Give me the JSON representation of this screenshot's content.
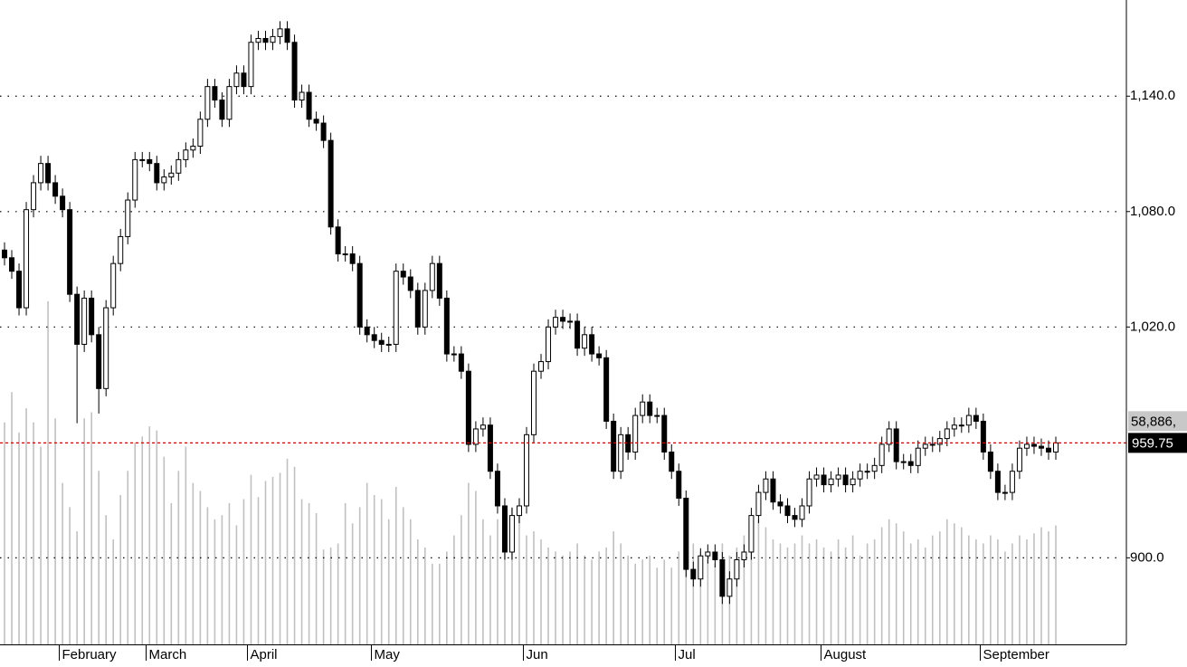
{
  "chart_data": {
    "type": "candlestick",
    "categories": [
      null,
      null,
      null,
      null,
      null,
      null,
      null,
      null,
      "February",
      null,
      null,
      null,
      null,
      null,
      null,
      null,
      null,
      null,
      null,
      null,
      "March",
      null,
      null,
      null,
      null,
      null,
      null,
      null,
      null,
      null,
      null,
      null,
      null,
      null,
      "April",
      null,
      null,
      null,
      null,
      null,
      null,
      null,
      null,
      null,
      null,
      null,
      null,
      null,
      null,
      null,
      null,
      "May",
      null,
      null,
      null,
      null,
      null,
      null,
      null,
      null,
      null,
      null,
      null,
      null,
      null,
      null,
      null,
      null,
      null,
      null,
      null,
      null,
      "Jun",
      null,
      null,
      null,
      null,
      null,
      null,
      null,
      null,
      null,
      null,
      null,
      null,
      null,
      null,
      null,
      null,
      null,
      null,
      null,
      null,
      "Jul",
      null,
      null,
      null,
      null,
      null,
      null,
      null,
      null,
      null,
      null,
      null,
      null,
      null,
      null,
      null,
      null,
      null,
      null,
      null,
      "August",
      null,
      null,
      null,
      null,
      null,
      null,
      null,
      null,
      null,
      null,
      null,
      null,
      null,
      null,
      null,
      null,
      null,
      null,
      null,
      null,
      null,
      "September",
      null,
      null,
      null,
      null,
      null,
      null,
      null,
      null,
      null,
      null
    ],
    "open": [
      1060,
      1056,
      1049,
      1030,
      1081,
      1095,
      1105,
      1095,
      1088,
      1081,
      1037,
      1011,
      1035,
      1016,
      988,
      1030,
      1053,
      1067,
      1086,
      1107,
      1107,
      1105,
      1095,
      1098,
      1100,
      1107,
      1112,
      1114,
      1128,
      1145,
      1138,
      1128,
      1145,
      1152,
      1145,
      1168,
      1170,
      1168,
      1171,
      1175,
      1168,
      1138,
      1142,
      1128,
      1126,
      1117,
      1072,
      1058,
      1058,
      1053,
      1020,
      1016,
      1013,
      1011,
      1011,
      1049,
      1046,
      1039,
      1020,
      1039,
      1053,
      1035,
      1006,
      1006,
      997,
      959,
      967,
      969,
      945,
      927,
      903,
      922,
      927,
      964,
      997,
      1002,
      1020,
      1025,
      1023,
      1023,
      1009,
      1016,
      1006,
      1004,
      971,
      945,
      964,
      955,
      974,
      981,
      974,
      974,
      955,
      945,
      931,
      894,
      889,
      901,
      903,
      899,
      880,
      889,
      899,
      903,
      922,
      934,
      941,
      929,
      927,
      922,
      920,
      927,
      941,
      943,
      938,
      941,
      943,
      938,
      941,
      945,
      945,
      948,
      959,
      967,
      950,
      950,
      948,
      957,
      959,
      959,
      962,
      967,
      969,
      969,
      974,
      971,
      955,
      945,
      934,
      934,
      945,
      957,
      959,
      958,
      957,
      955
    ],
    "high": [
      1064,
      1060,
      1053,
      1085,
      1099,
      1109,
      1109,
      1099,
      1092,
      1085,
      1041,
      1039,
      1039,
      1020,
      1034,
      1057,
      1071,
      1090,
      1111,
      1111,
      1111,
      1109,
      1102,
      1104,
      1111,
      1116,
      1118,
      1132,
      1149,
      1149,
      1142,
      1149,
      1156,
      1156,
      1172,
      1174,
      1174,
      1175,
      1179,
      1179,
      1172,
      1146,
      1146,
      1132,
      1130,
      1121,
      1076,
      1062,
      1062,
      1057,
      1024,
      1020,
      1017,
      1015,
      1053,
      1053,
      1050,
      1043,
      1043,
      1057,
      1057,
      1039,
      1010,
      1010,
      1001,
      971,
      973,
      973,
      949,
      931,
      926,
      931,
      968,
      1001,
      1006,
      1024,
      1029,
      1029,
      1027,
      1027,
      1020,
      1020,
      1010,
      1008,
      975,
      968,
      968,
      978,
      985,
      985,
      978,
      978,
      959,
      949,
      935,
      898,
      905,
      907,
      907,
      903,
      893,
      903,
      907,
      926,
      938,
      945,
      945,
      933,
      931,
      926,
      931,
      945,
      947,
      947,
      945,
      947,
      947,
      945,
      949,
      949,
      952,
      963,
      971,
      971,
      954,
      954,
      961,
      963,
      963,
      966,
      971,
      973,
      973,
      978,
      978,
      975,
      959,
      949,
      938,
      949,
      961,
      963,
      963,
      962,
      961,
      963
    ],
    "low": [
      1052,
      1045,
      1026,
      1026,
      1077,
      1091,
      1091,
      1084,
      1077,
      1033,
      970,
      1007,
      1012,
      975,
      984,
      1026,
      1049,
      1063,
      1082,
      1103,
      1101,
      1091,
      1091,
      1094,
      1096,
      1103,
      1108,
      1110,
      1124,
      1134,
      1124,
      1124,
      1141,
      1141,
      1141,
      1164,
      1164,
      1164,
      1167,
      1164,
      1134,
      1134,
      1124,
      1122,
      1113,
      1068,
      1054,
      1054,
      1049,
      1016,
      1012,
      1009,
      1007,
      1007,
      1007,
      1042,
      1035,
      1016,
      1016,
      1035,
      1031,
      1002,
      1002,
      993,
      955,
      955,
      963,
      941,
      923,
      899,
      899,
      918,
      923,
      960,
      993,
      998,
      1016,
      1019,
      1019,
      1005,
      1005,
      1002,
      1000,
      967,
      941,
      941,
      951,
      951,
      970,
      970,
      970,
      951,
      941,
      927,
      890,
      885,
      885,
      897,
      895,
      876,
      876,
      885,
      895,
      899,
      918,
      930,
      925,
      923,
      918,
      916,
      916,
      923,
      937,
      934,
      934,
      937,
      934,
      934,
      937,
      941,
      941,
      944,
      955,
      946,
      946,
      944,
      944,
      953,
      955,
      955,
      958,
      963,
      965,
      965,
      967,
      951,
      941,
      930,
      930,
      930,
      941,
      953,
      954,
      953,
      951,
      951
    ],
    "close": [
      1056,
      1049,
      1030,
      1081,
      1095,
      1105,
      1095,
      1088,
      1081,
      1037,
      1011,
      1035,
      1016,
      988,
      1030,
      1053,
      1067,
      1086,
      1107,
      1107,
      1105,
      1095,
      1098,
      1100,
      1107,
      1112,
      1114,
      1128,
      1145,
      1138,
      1128,
      1145,
      1152,
      1145,
      1168,
      1170,
      1168,
      1171,
      1175,
      1168,
      1138,
      1142,
      1128,
      1126,
      1117,
      1072,
      1058,
      1058,
      1053,
      1020,
      1016,
      1013,
      1011,
      1011,
      1049,
      1046,
      1039,
      1020,
      1039,
      1053,
      1035,
      1006,
      1006,
      997,
      959,
      967,
      969,
      945,
      927,
      903,
      922,
      927,
      964,
      997,
      1002,
      1020,
      1025,
      1023,
      1023,
      1009,
      1016,
      1006,
      1004,
      971,
      945,
      964,
      955,
      974,
      981,
      974,
      974,
      955,
      945,
      931,
      894,
      889,
      901,
      903,
      899,
      880,
      889,
      899,
      903,
      922,
      934,
      941,
      929,
      927,
      922,
      920,
      927,
      941,
      943,
      938,
      941,
      943,
      938,
      941,
      945,
      945,
      948,
      959,
      967,
      950,
      950,
      948,
      957,
      959,
      959,
      962,
      967,
      969,
      969,
      974,
      971,
      955,
      945,
      934,
      934,
      945,
      957,
      959,
      958,
      957,
      955,
      959.75
    ],
    "volume": [
      110000,
      125000,
      105000,
      117000,
      110000,
      98000,
      170000,
      112000,
      80000,
      68000,
      56000,
      112000,
      115000,
      86000,
      64000,
      52000,
      74000,
      86000,
      100000,
      103000,
      108000,
      106000,
      93000,
      70000,
      86000,
      98000,
      80000,
      76000,
      68000,
      62000,
      64000,
      70000,
      59000,
      72000,
      84000,
      73000,
      81000,
      83000,
      85000,
      92000,
      88000,
      72000,
      70000,
      65000,
      47000,
      48000,
      50000,
      70000,
      60000,
      68000,
      80000,
      74000,
      72000,
      62000,
      78000,
      68000,
      62000,
      52000,
      48000,
      40000,
      40000,
      46000,
      54000,
      64000,
      80000,
      76000,
      62000,
      54000,
      62000,
      66000,
      68000,
      64000,
      54000,
      56000,
      52000,
      48000,
      46000,
      44000,
      46000,
      50000,
      44000,
      42000,
      46000,
      48000,
      56000,
      50000,
      44000,
      40000,
      42000,
      44000,
      38000,
      42000,
      38000,
      46000,
      52000,
      50000,
      46000,
      42000,
      40000,
      50000,
      44000,
      48000,
      54000,
      56000,
      62000,
      58000,
      52000,
      50000,
      48000,
      50000,
      54000,
      50000,
      52000,
      48000,
      46000,
      52000,
      48000,
      54000,
      44000,
      50000,
      52000,
      58000,
      62000,
      60000,
      56000,
      50000,
      52000,
      48000,
      54000,
      56000,
      62000,
      60000,
      58000,
      54000,
      52000,
      50000,
      54000,
      52000,
      46000,
      50000,
      54000,
      52000,
      55000,
      58000,
      56000,
      58886
    ],
    "ylim": [
      855,
      1190
    ],
    "yticks": [
      {
        "value": 900,
        "label": "900.0"
      },
      {
        "value": 1020,
        "label": "1,020.0"
      },
      {
        "value": 1080,
        "label": "1,080.0"
      },
      {
        "value": 1140,
        "label": "1,140.0"
      }
    ],
    "y2lim": [
      0,
      300000
    ],
    "grid": true,
    "last_close_label": "959.75",
    "last_volume_label": "58,886,",
    "up_color": "#ffffff",
    "down_color": "#000000",
    "volume_color": "#c0c0c0",
    "last_line_color": "#cc0000"
  }
}
